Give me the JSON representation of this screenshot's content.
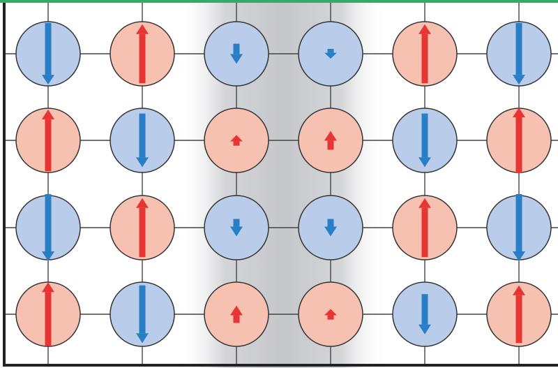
{
  "diagram": {
    "kind": "spin-lattice",
    "description_rows": 4,
    "description_cols": 6,
    "spins": [
      [
        "down",
        "up",
        "down",
        "down",
        "up",
        "down"
      ],
      [
        "up",
        "down",
        "up",
        "up",
        "down",
        "up"
      ],
      [
        "down",
        "up",
        "down",
        "down",
        "up",
        "down"
      ],
      [
        "up",
        "down",
        "up",
        "up",
        "down",
        "up"
      ]
    ],
    "magnitudes": [
      [
        0.92,
        0.88,
        0.3,
        0.14,
        0.88,
        0.92
      ],
      [
        0.92,
        0.8,
        0.16,
        0.28,
        0.8,
        0.98
      ],
      [
        1.0,
        0.88,
        0.26,
        0.26,
        0.88,
        1.0
      ],
      [
        0.95,
        0.86,
        0.26,
        0.16,
        0.6,
        0.86
      ]
    ],
    "domain_wall_columns": [
      2,
      3
    ],
    "colors": {
      "up_fill": "#f6c1b1",
      "up_arrow": "#e63535",
      "down_fill": "#b9cdea",
      "down_arrow": "#2a7ec6",
      "bond": "#444444",
      "circle_outline": "#333333",
      "frame": "#222222",
      "top_accent": "#3aa86b",
      "wall_shade": "#c9cacd"
    }
  }
}
